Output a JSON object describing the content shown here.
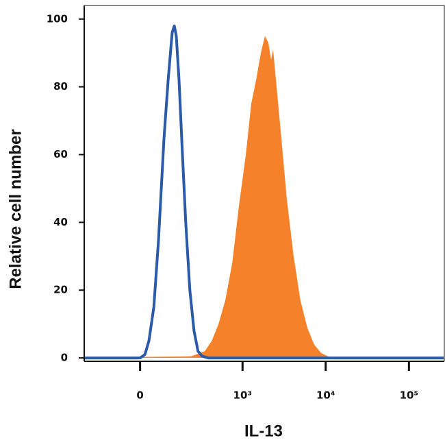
{
  "chart_data": {
    "type": "line",
    "x_label": "IL-13",
    "y_label": "Relative cell number",
    "xscale": "biexponential",
    "xlim": [
      -264,
      261000
    ],
    "xticks": [
      {
        "value": 0,
        "label": "0"
      },
      {
        "value": 1000,
        "label": "10³"
      },
      {
        "value": 10000,
        "label": "10⁴"
      },
      {
        "value": 100000,
        "label": "10⁵"
      }
    ],
    "ylim": [
      -1,
      104
    ],
    "yticks": [
      0,
      20,
      40,
      60,
      80,
      100
    ],
    "series": [
      {
        "color": "#f5822a",
        "fill": true,
        "x": [
          0,
          157,
          229,
          344,
          420,
          510,
          618,
          749,
          906,
          1096,
          1275,
          1458,
          1663,
          1862,
          2047,
          2209,
          2336,
          2569,
          2931,
          3410,
          4118,
          4973,
          6006,
          7252,
          8756,
          10578,
          12770
        ],
        "values": [
          0.3,
          0.4,
          0.5,
          2,
          5,
          10,
          17,
          28,
          45,
          60,
          75,
          82,
          90,
          95,
          93,
          88,
          91,
          80,
          65,
          47,
          30,
          17,
          9,
          4,
          1.5,
          0.5,
          0
        ]
      },
      {
        "color": "#2b5ba8",
        "fill": false,
        "x": [
          -264,
          0,
          16,
          29,
          46,
          63,
          84,
          101,
          119,
          129,
          139,
          153,
          172,
          192,
          219,
          249,
          281,
          318,
          380,
          261000
        ],
        "values": [
          0,
          0,
          1,
          5,
          15,
          35,
          65,
          82,
          96,
          98,
          95,
          82,
          60,
          40,
          20,
          8,
          2,
          0.5,
          0,
          0
        ]
      }
    ]
  }
}
